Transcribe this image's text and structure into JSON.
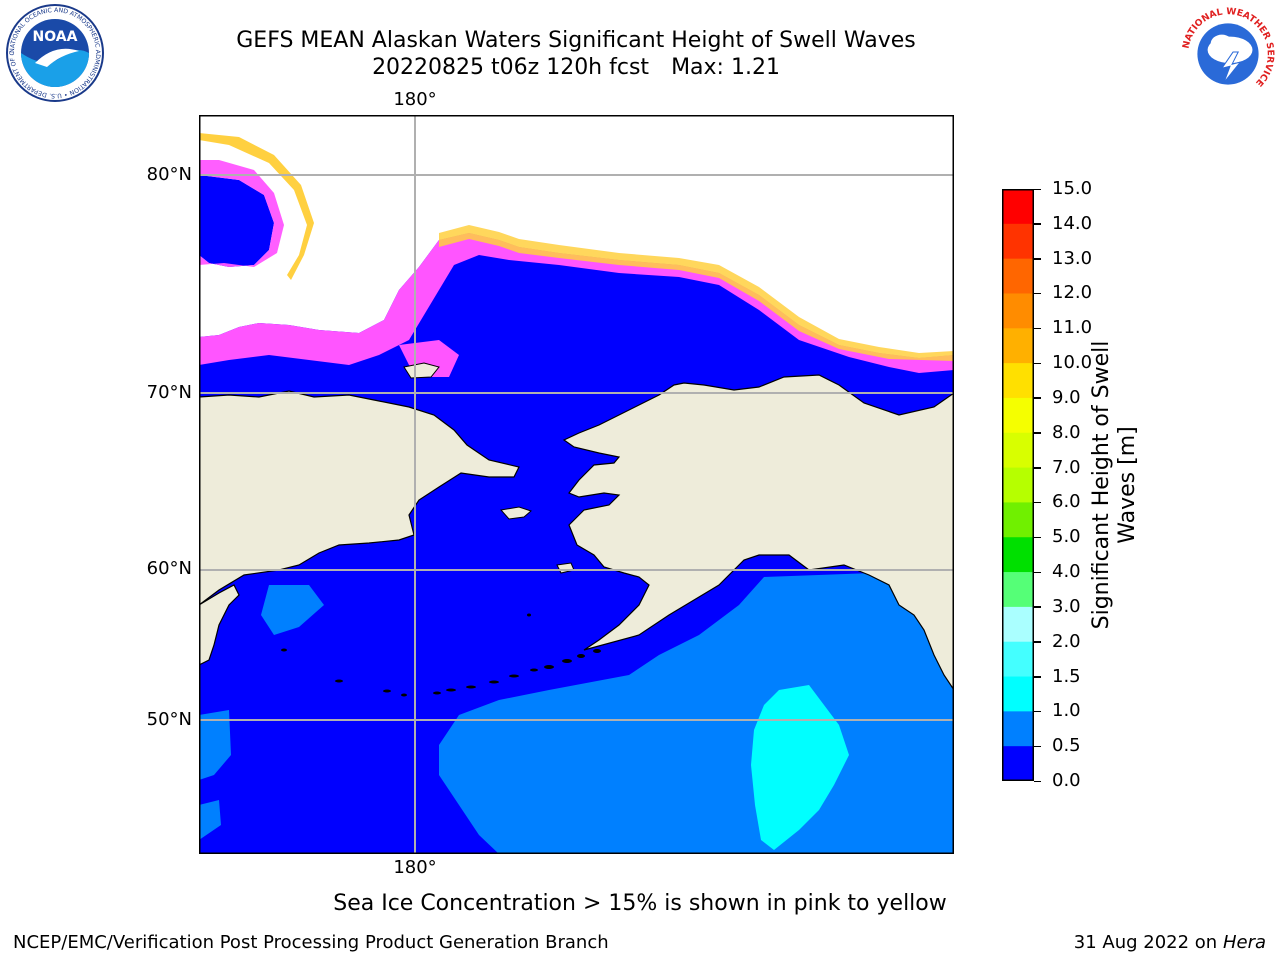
{
  "header": {
    "title_line1": "GEFS MEAN Alaskan Waters Significant Height of Swell Waves",
    "run_label": "20220825 t06z 120h fcst",
    "max_label": "Max: 1.21"
  },
  "logos": {
    "noaa_text": "NOAA",
    "noaa_ring_text": "NATIONAL OCEANIC AND ATMOSPHERIC ADMINISTRATION • U.S. DEPARTMENT OF COMMERCE",
    "nws_ring_text": "NATIONAL WEATHER SERVICE"
  },
  "map": {
    "lon_label_top": "180°",
    "lon_label_bottom": "180°",
    "lat_labels": [
      "80°N",
      "70°N",
      "60°N",
      "50°N"
    ],
    "colors": {
      "land": "#eeecda",
      "ocean_0_0_5": "#0000ff",
      "ocean_0_5_1": "#0080ff",
      "ocean_1_1_5": "#00ffff",
      "ice_low": "#ff55ff",
      "ice_high": "#ffd040",
      "grid": "#b0b0b0"
    }
  },
  "colorbar": {
    "ticks": [
      "15.0",
      "14.0",
      "13.0",
      "12.0",
      "11.0",
      "10.0",
      "9.0",
      "8.0",
      "7.0",
      "6.0",
      "5.0",
      "4.0",
      "3.0",
      "2.0",
      "1.5",
      "1.0",
      "0.5",
      "0.0"
    ],
    "colors": [
      "#ff0000",
      "#ff3300",
      "#ff6600",
      "#ff8c00",
      "#ffb000",
      "#ffe000",
      "#f5ff00",
      "#d8ff00",
      "#b6ff00",
      "#70f000",
      "#00e000",
      "#55ff77",
      "#aaffff",
      "#44ffff",
      "#00ffff",
      "#0080ff",
      "#0000ff"
    ],
    "label_line1": "Significant Height of Swell",
    "label_line2": "Waves [m]"
  },
  "caption": "Sea Ice Concentration > 15% is shown in pink to yellow",
  "footer": {
    "left": "NCEP/EMC/Verification Post Processing Product Generation Branch",
    "date": "31 Aug 2022 on",
    "host": "Hera"
  }
}
